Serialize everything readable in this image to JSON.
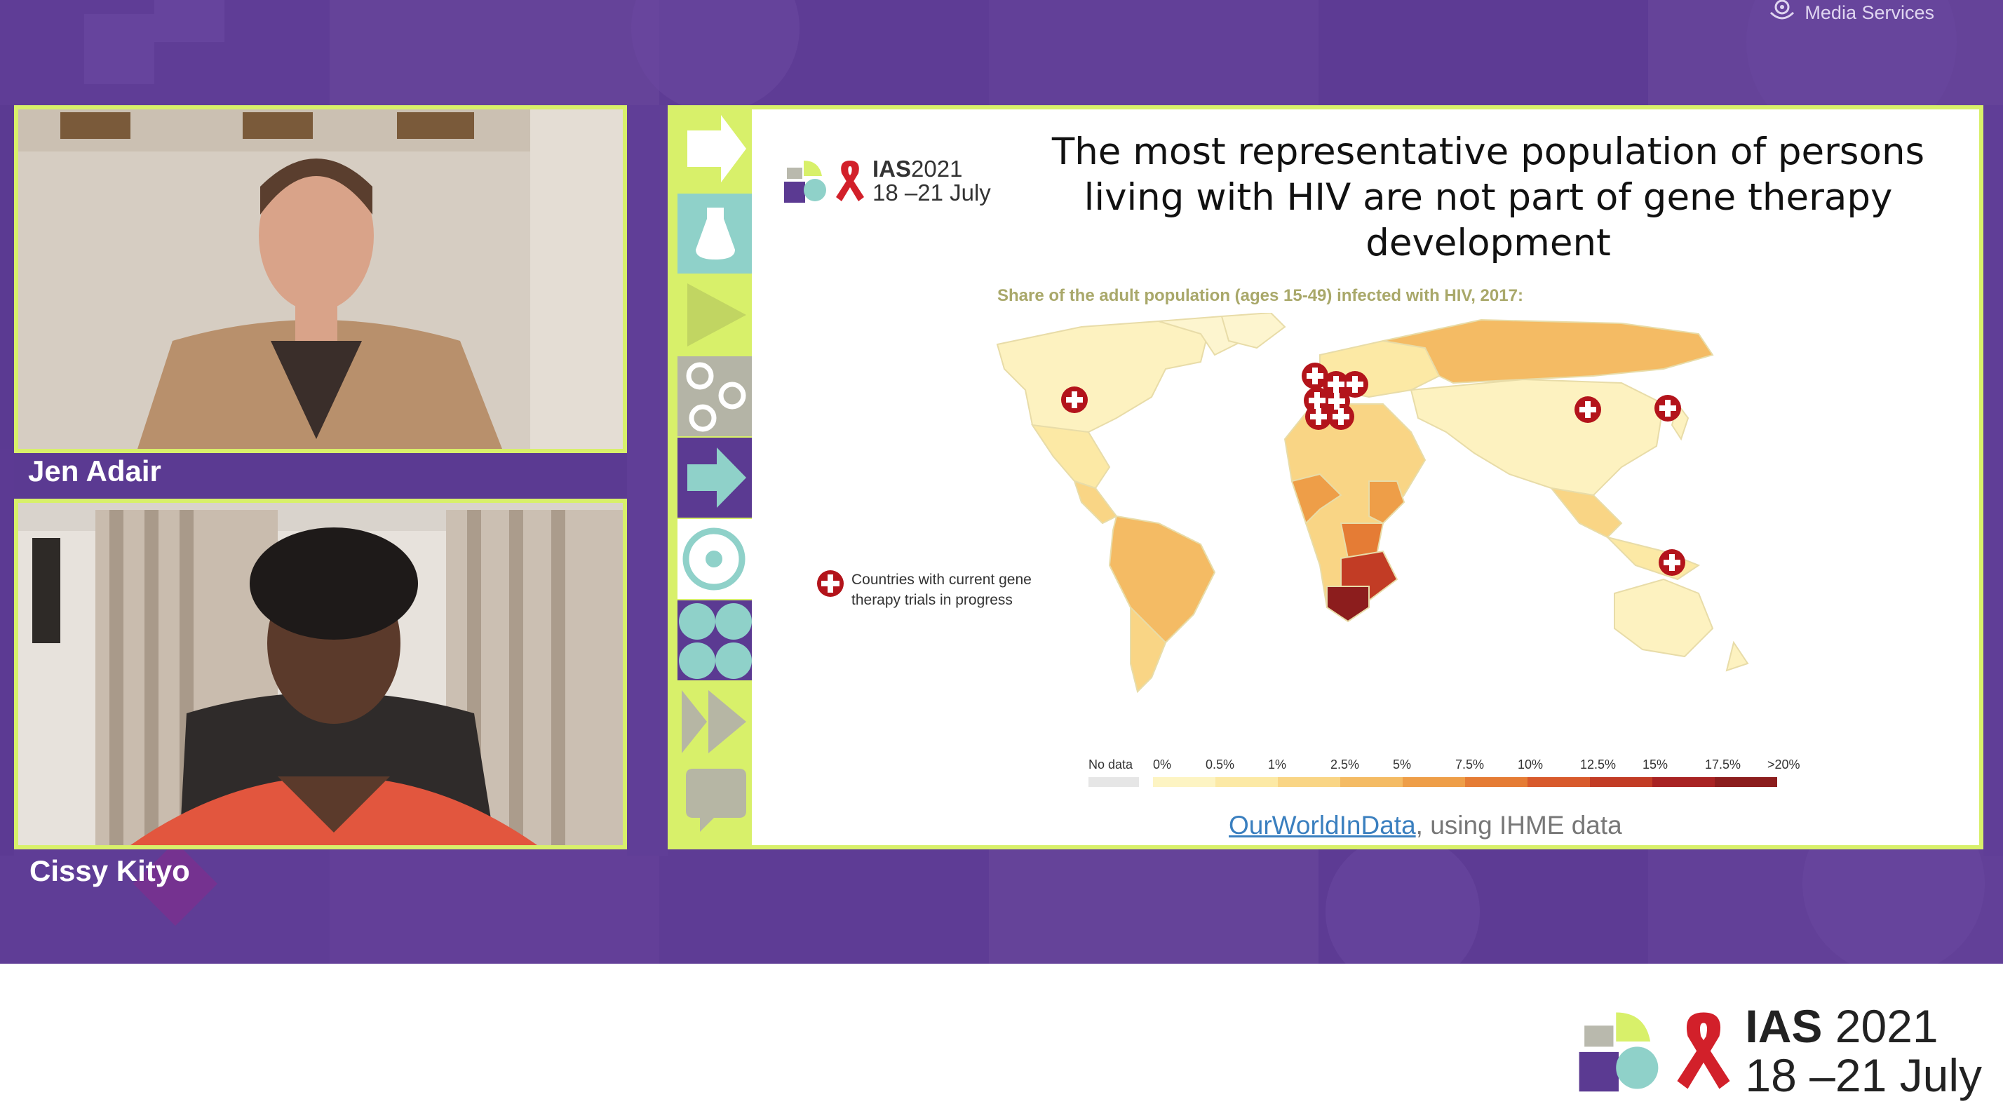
{
  "watermark": {
    "label": "Media Services"
  },
  "participants": [
    {
      "name": "Jen Adair"
    },
    {
      "name": "Cissy Kityo"
    }
  ],
  "slide": {
    "logo_ias": "IAS",
    "logo_year": "2021",
    "logo_dates": "18 –21 July",
    "title": "The most representative population of persons living with HIV are not part of gene therapy development",
    "map_subtitle": "Share of the adult population (ages 15-49) infected with HIV, 2017:",
    "marker_legend": "Countries with current gene therapy trials in progress",
    "scale_labels": [
      "No data",
      "0%",
      "0.5%",
      "1%",
      "2.5%",
      "5%",
      "7.5%",
      "10%",
      "12.5%",
      "15%",
      "17.5%",
      ">20%"
    ],
    "scale_colors": [
      "#fdf4c3",
      "#fce9a5",
      "#f9d585",
      "#f4bb64",
      "#ee9e48",
      "#e57c35",
      "#d85a2c",
      "#c23c25",
      "#a82323",
      "#8c1d1d"
    ],
    "source_link": "OurWorldInData",
    "source_rest": ", using IHME data"
  },
  "footer": {
    "ias": "IAS",
    "year": "2021",
    "dates": "18 –21 July"
  },
  "colors": {
    "background_purple": "#5b3a92",
    "frame_lime": "#d8f06a",
    "ribbon_red": "#d2202a",
    "marker_red": "#b3141b"
  }
}
